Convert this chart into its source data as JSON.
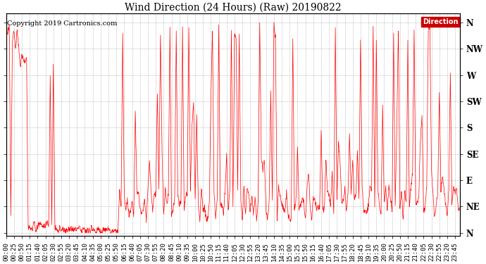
{
  "title": "Wind Direction (24 Hours) (Raw) 20190822",
  "copyright": "Copyright 2019 Cartronics.com",
  "legend_label": "Direction",
  "legend_bg": "#cc0000",
  "line_color": "#ff0000",
  "bg_color": "#ffffff",
  "plot_bg_color": "#ffffff",
  "grid_color": "#888888",
  "ytick_labels": [
    "N",
    "NE",
    "E",
    "SE",
    "S",
    "SW",
    "W",
    "NW",
    "N"
  ],
  "ytick_values": [
    0,
    45,
    90,
    135,
    180,
    225,
    270,
    315,
    360
  ],
  "ylim": [
    -5,
    375
  ],
  "title_fontsize": 10,
  "copyright_fontsize": 7,
  "tick_fontsize": 6.5,
  "xtick_interval_minutes": 25,
  "total_minutes": 1440
}
